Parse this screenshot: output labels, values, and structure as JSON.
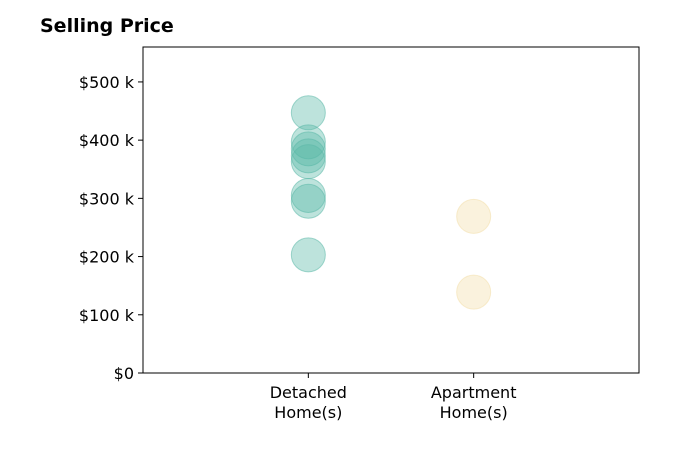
{
  "chart_data": {
    "type": "scatter",
    "title": "Selling Price",
    "categories": [
      "Detached Home(s)",
      "Apartment Home(s)"
    ],
    "category_lines": [
      [
        "Detached",
        "Home(s)"
      ],
      [
        "Apartment",
        "Home(s)"
      ]
    ],
    "series": [
      {
        "category": "Detached Home(s)",
        "color": "#5bb8a8",
        "values": [
          447000,
          397000,
          385000,
          373000,
          363000,
          305000,
          295000,
          203000
        ]
      },
      {
        "category": "Apartment Home(s)",
        "color": "#f3deaa",
        "values": [
          269000,
          139000
        ]
      }
    ],
    "y_ticks": [
      {
        "value": 0,
        "label": "$0"
      },
      {
        "value": 100000,
        "label": "$100 k"
      },
      {
        "value": 200000,
        "label": "$200 k"
      },
      {
        "value": 300000,
        "label": "$300 k"
      },
      {
        "value": 400000,
        "label": "$400 k"
      },
      {
        "value": 500000,
        "label": "$500 k"
      }
    ],
    "ylim": [
      0,
      560000
    ],
    "xlim": [
      -1,
      2
    ],
    "grid": false,
    "legend": "none"
  }
}
